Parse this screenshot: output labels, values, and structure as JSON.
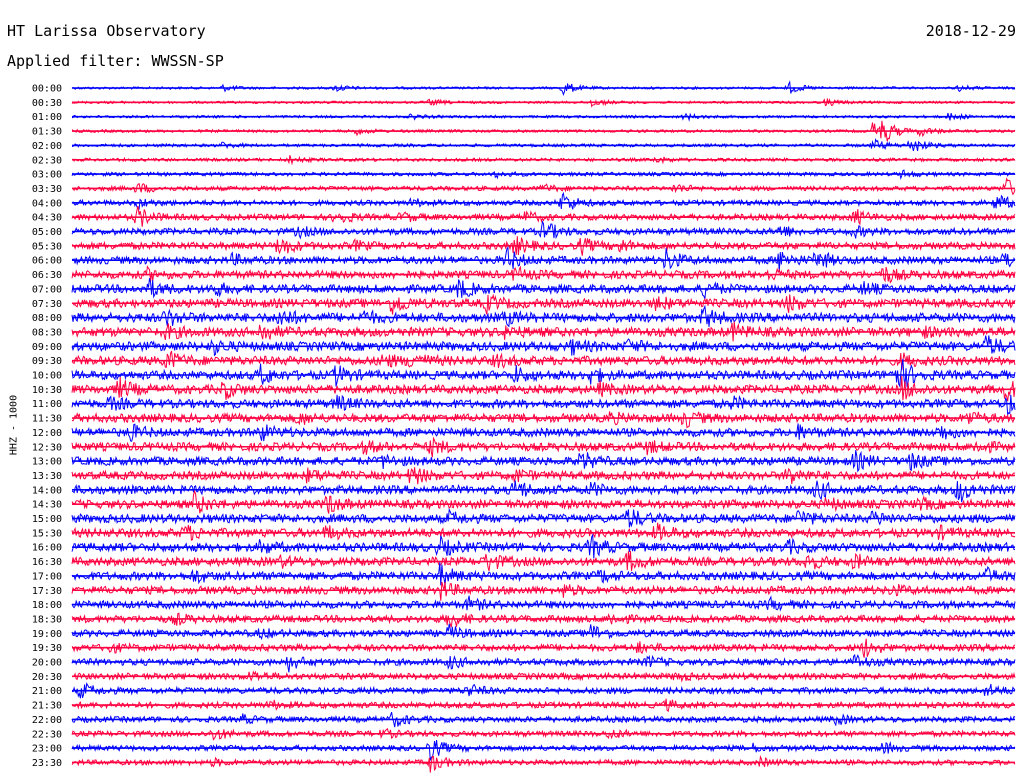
{
  "header": {
    "title": "HT Larissa Observatory",
    "filter": "Applied filter: WWSSN-SP",
    "date": "2018-12-29"
  },
  "station_label": "HHZ - 1000",
  "chart_data": {
    "type": "line",
    "title": "HT Larissa Observatory",
    "subtitle": "Applied filter: WWSSN-SP",
    "date": "2018-12-29",
    "ylabel": "HHZ - 1000",
    "row_labels": [
      "00:00",
      "00:30",
      "01:00",
      "01:30",
      "02:00",
      "02:30",
      "03:00",
      "03:30",
      "04:00",
      "04:30",
      "05:00",
      "05:30",
      "06:00",
      "06:30",
      "07:00",
      "07:30",
      "08:00",
      "08:30",
      "09:00",
      "09:30",
      "10:00",
      "10:30",
      "11:00",
      "11:30",
      "12:00",
      "12:30",
      "13:00",
      "13:30",
      "14:00",
      "14:30",
      "15:00",
      "15:30",
      "16:00",
      "16:30",
      "17:00",
      "17:30",
      "18:00",
      "18:30",
      "19:00",
      "19:30",
      "20:00",
      "20:30",
      "21:00",
      "21:30",
      "22:00",
      "22:30",
      "23:00",
      "23:30"
    ],
    "noise_amplitude": [
      1.2,
      1.2,
      1.3,
      1.4,
      1.5,
      1.6,
      1.8,
      2.2,
      2.6,
      3.0,
      3.3,
      3.6,
      3.8,
      4.0,
      4.2,
      4.4,
      4.6,
      4.6,
      4.6,
      4.5,
      4.4,
      4.4,
      4.3,
      4.3,
      4.2,
      4.2,
      4.2,
      4.2,
      4.3,
      4.3,
      4.4,
      4.4,
      4.4,
      4.3,
      4.2,
      4.0,
      3.8,
      3.6,
      3.5,
      3.4,
      3.3,
      3.2,
      3.1,
      3.0,
      2.9,
      2.8,
      2.7,
      2.6
    ],
    "row_colors": [
      "#0000ff",
      "#ff0040"
    ],
    "events": [
      [
        [
          0.52,
          1.0
        ],
        [
          0.16,
          0.4
        ],
        [
          0.28,
          0.5
        ],
        [
          0.76,
          0.8
        ],
        [
          0.94,
          0.4
        ]
      ],
      [
        [
          0.55,
          0.6
        ],
        [
          0.8,
          0.5
        ],
        [
          0.38,
          0.4
        ]
      ],
      [
        [
          0.65,
          0.4
        ],
        [
          0.36,
          0.3
        ],
        [
          0.93,
          0.5
        ]
      ],
      [
        [
          0.85,
          1.5
        ],
        [
          0.86,
          1.2
        ],
        [
          0.3,
          0.5
        ],
        [
          0.9,
          0.6
        ]
      ],
      [
        [
          0.89,
          1.2
        ],
        [
          0.85,
          0.8
        ],
        [
          0.16,
          0.4
        ]
      ],
      [
        [
          0.23,
          0.5
        ],
        [
          0.62,
          0.4
        ]
      ],
      [
        [
          0.45,
          0.4
        ],
        [
          0.88,
          0.5
        ]
      ],
      [
        [
          0.99,
          1.4
        ],
        [
          0.07,
          0.7
        ],
        [
          0.64,
          0.6
        ],
        [
          0.5,
          0.5
        ]
      ],
      [
        [
          0.52,
          1.5
        ],
        [
          0.07,
          0.6
        ],
        [
          0.98,
          1.2
        ],
        [
          0.36,
          0.5
        ]
      ],
      [
        [
          0.07,
          1.4
        ],
        [
          0.28,
          1.0
        ],
        [
          0.83,
          1.0
        ],
        [
          0.35,
          0.6
        ],
        [
          0.48,
          0.7
        ]
      ],
      [
        [
          0.5,
          1.4
        ],
        [
          0.75,
          0.8
        ],
        [
          0.83,
          0.6
        ],
        [
          0.24,
          0.6
        ]
      ],
      [
        [
          0.22,
          1.3
        ],
        [
          0.47,
          1.2
        ],
        [
          0.54,
          1.0
        ],
        [
          0.58,
          0.8
        ],
        [
          0.3,
          0.5
        ]
      ],
      [
        [
          0.46,
          1.6
        ],
        [
          0.63,
          1.4
        ],
        [
          0.75,
          1.3
        ],
        [
          0.79,
          1.2
        ],
        [
          0.99,
          1.1
        ],
        [
          0.17,
          0.6
        ]
      ],
      [
        [
          0.86,
          1.1
        ],
        [
          0.08,
          0.6
        ],
        [
          0.47,
          0.8
        ],
        [
          0.74,
          0.6
        ]
      ],
      [
        [
          0.08,
          1.2
        ],
        [
          0.41,
          1.2
        ],
        [
          0.67,
          1.0
        ],
        [
          0.15,
          0.8
        ],
        [
          0.84,
          0.7
        ]
      ],
      [
        [
          0.34,
          1.4
        ],
        [
          0.44,
          1.0
        ],
        [
          0.76,
          1.0
        ],
        [
          0.62,
          0.8
        ]
      ],
      [
        [
          0.22,
          1.2
        ],
        [
          0.67,
          1.3
        ],
        [
          0.1,
          1.0
        ],
        [
          0.31,
          0.7
        ],
        [
          0.46,
          0.8
        ]
      ],
      [
        [
          0.2,
          1.2
        ],
        [
          0.7,
          1.0
        ],
        [
          0.1,
          0.8
        ],
        [
          0.46,
          0.7
        ],
        [
          0.9,
          0.6
        ]
      ],
      [
        [
          0.97,
          1.3
        ],
        [
          0.15,
          0.8
        ],
        [
          0.53,
          0.8
        ],
        [
          0.59,
          0.6
        ]
      ],
      [
        [
          0.1,
          1.3
        ],
        [
          0.33,
          0.8
        ],
        [
          0.36,
          1.0
        ],
        [
          0.45,
          0.7
        ],
        [
          0.88,
          0.8
        ]
      ],
      [
        [
          0.2,
          1.2
        ],
        [
          0.28,
          1.2
        ],
        [
          0.47,
          1.0
        ],
        [
          0.55,
          0.9
        ],
        [
          0.87,
          1.5
        ],
        [
          0.88,
          1.2
        ]
      ],
      [
        [
          0.05,
          1.3
        ],
        [
          0.16,
          1.2
        ],
        [
          0.88,
          1.4
        ],
        [
          0.99,
          1.4
        ],
        [
          0.56,
          0.7
        ]
      ],
      [
        [
          0.99,
          1.5
        ],
        [
          0.28,
          1.0
        ],
        [
          0.04,
          0.7
        ],
        [
          0.7,
          0.7
        ]
      ],
      [
        [
          0.65,
          1.0
        ],
        [
          0.24,
          0.7
        ],
        [
          0.57,
          0.6
        ],
        [
          0.95,
          0.8
        ]
      ],
      [
        [
          0.06,
          1.1
        ],
        [
          0.2,
          1.0
        ],
        [
          0.77,
          0.8
        ],
        [
          0.92,
          0.9
        ]
      ],
      [
        [
          0.38,
          1.1
        ],
        [
          0.31,
          0.7
        ],
        [
          0.61,
          0.7
        ],
        [
          0.96,
          0.8
        ]
      ],
      [
        [
          0.54,
          1.2
        ],
        [
          0.83,
          1.1
        ],
        [
          0.89,
          1.0
        ],
        [
          0.33,
          0.7
        ]
      ],
      [
        [
          0.36,
          1.2
        ],
        [
          0.76,
          1.2
        ],
        [
          0.25,
          0.8
        ],
        [
          0.47,
          0.7
        ]
      ],
      [
        [
          0.47,
          1.3
        ],
        [
          0.94,
          1.6
        ],
        [
          0.79,
          1.1
        ],
        [
          0.55,
          0.8
        ]
      ],
      [
        [
          0.13,
          1.3
        ],
        [
          0.27,
          1.2
        ],
        [
          0.8,
          0.7
        ],
        [
          0.9,
          0.6
        ]
      ],
      [
        [
          0.59,
          1.3
        ],
        [
          0.4,
          0.7
        ],
        [
          0.77,
          1.0
        ],
        [
          0.85,
          0.8
        ]
      ],
      [
        [
          0.12,
          0.9
        ],
        [
          0.27,
          0.8
        ],
        [
          0.62,
          1.0
        ],
        [
          0.92,
          0.6
        ]
      ],
      [
        [
          0.39,
          1.2
        ],
        [
          0.55,
          1.4
        ],
        [
          0.2,
          0.8
        ],
        [
          0.76,
          0.7
        ]
      ],
      [
        [
          0.44,
          1.2
        ],
        [
          0.59,
          1.3
        ],
        [
          0.78,
          1.0
        ],
        [
          0.83,
          0.8
        ],
        [
          0.22,
          0.6
        ]
      ],
      [
        [
          0.39,
          1.4
        ],
        [
          0.13,
          0.8
        ],
        [
          0.56,
          0.7
        ],
        [
          0.97,
          0.8
        ]
      ],
      [
        [
          0.39,
          1.2
        ],
        [
          0.52,
          0.7
        ],
        [
          0.87,
          0.6
        ]
      ],
      [
        [
          0.42,
          0.8
        ],
        [
          0.74,
          0.6
        ]
      ],
      [
        [
          0.4,
          1.2
        ],
        [
          0.11,
          0.6
        ],
        [
          0.57,
          0.7
        ]
      ],
      [
        [
          0.55,
          1.1
        ],
        [
          0.4,
          0.9
        ],
        [
          0.2,
          0.5
        ]
      ],
      [
        [
          0.84,
          1.2
        ],
        [
          0.04,
          0.5
        ],
        [
          0.6,
          0.6
        ]
      ],
      [
        [
          0.23,
          1.0
        ],
        [
          0.83,
          0.9
        ],
        [
          0.4,
          0.8
        ],
        [
          0.61,
          0.6
        ]
      ],
      [
        [
          0.19,
          0.6
        ],
        [
          0.64,
          0.5
        ]
      ],
      [
        [
          0.01,
          1.0
        ],
        [
          0.42,
          0.8
        ],
        [
          0.97,
          0.8
        ]
      ],
      [
        [
          0.21,
          0.5
        ],
        [
          0.63,
          0.6
        ]
      ],
      [
        [
          0.34,
          1.0
        ],
        [
          0.81,
          0.6
        ],
        [
          0.18,
          0.5
        ]
      ],
      [
        [
          0.15,
          0.8
        ],
        [
          0.33,
          0.5
        ],
        [
          0.57,
          0.6
        ]
      ],
      [
        [
          0.38,
          1.5
        ],
        [
          0.86,
          0.7
        ],
        [
          0.72,
          0.5
        ]
      ],
      [
        [
          0.38,
          1.2
        ],
        [
          0.15,
          0.4
        ],
        [
          0.73,
          0.5
        ]
      ]
    ]
  }
}
